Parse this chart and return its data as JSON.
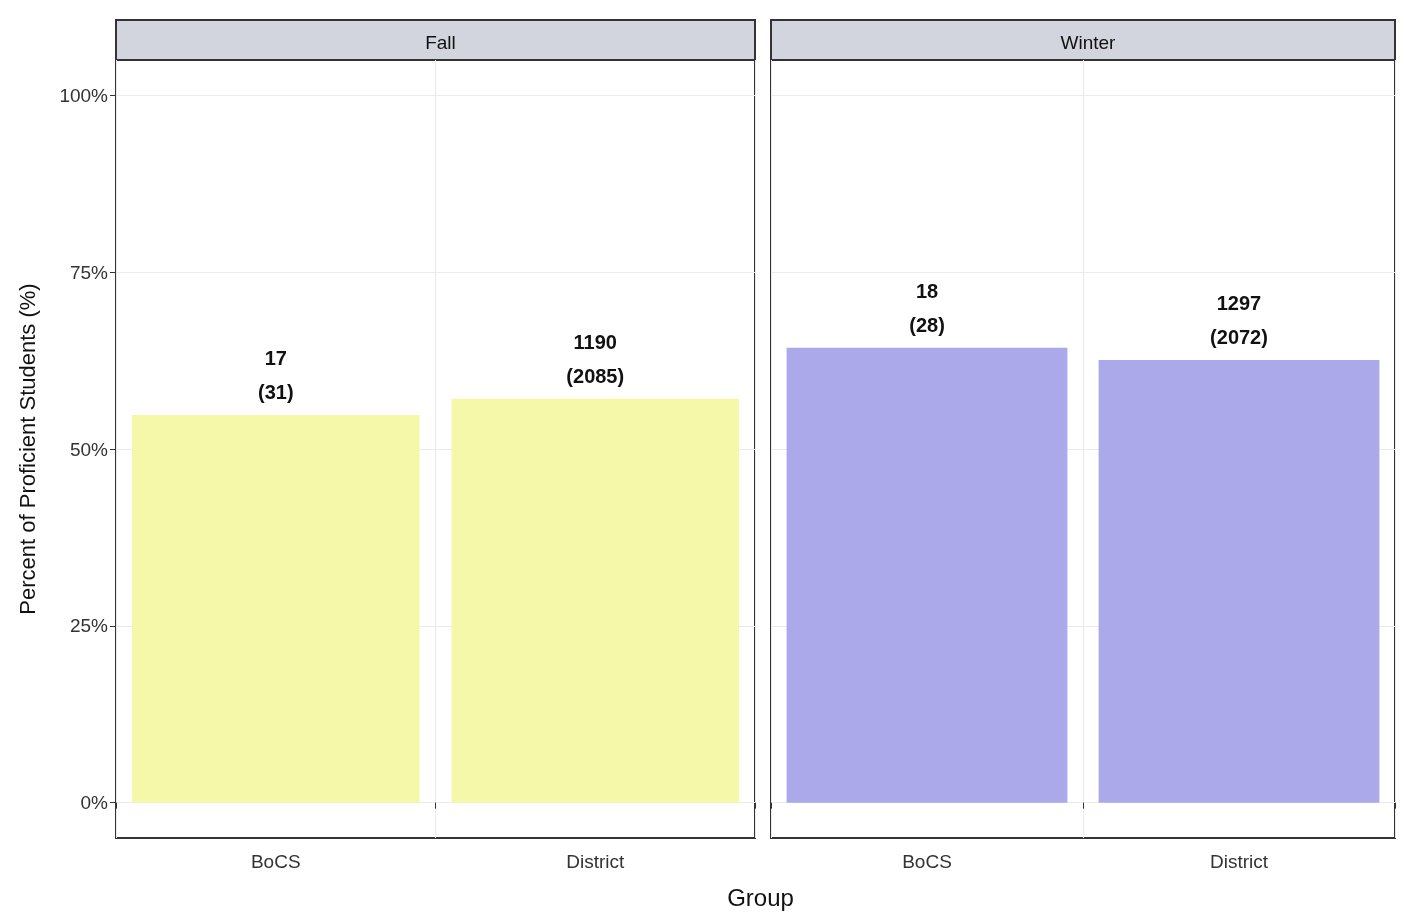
{
  "chart_data": [
    {
      "type": "bar",
      "title": "Fall",
      "xlabel": "Group",
      "ylabel": "Percent of Proficient Students (%)",
      "categories": [
        "BoCS",
        "District"
      ],
      "values": [
        54.8,
        57.1
      ],
      "color": "#f5f8a8",
      "ylim": [
        -5,
        105
      ],
      "yticks": [
        {
          "value": 0,
          "label": "0%"
        },
        {
          "value": 25,
          "label": "25%"
        },
        {
          "value": 50,
          "label": "50%"
        },
        {
          "value": 75,
          "label": "75%"
        },
        {
          "value": 100,
          "label": "100%"
        }
      ],
      "grid": true,
      "annotations": [
        {
          "text": "17\n(31)",
          "x": "BoCS",
          "y": 54.8
        },
        {
          "text": "1190\n(2085)",
          "x": "District",
          "y": 57.1
        }
      ]
    },
    {
      "type": "bar",
      "title": "Winter",
      "categories": [
        "BoCS",
        "District"
      ],
      "values": [
        64.3,
        62.6
      ],
      "color": "#aba9e9",
      "ylim": [
        -5,
        105
      ],
      "yticks": [
        {
          "value": 0,
          "label": null
        },
        {
          "value": 25,
          "label": null
        },
        {
          "value": 50,
          "label": null
        },
        {
          "value": 75,
          "label": null
        },
        {
          "value": 100,
          "label": null
        }
      ],
      "grid": true,
      "tick_labels": "x",
      "annotations": [
        {
          "text": "18\n(28)",
          "x": "BoCS",
          "y": 64.3
        },
        {
          "text": "1297\n(2072)",
          "x": "District",
          "y": 62.6
        }
      ]
    }
  ]
}
